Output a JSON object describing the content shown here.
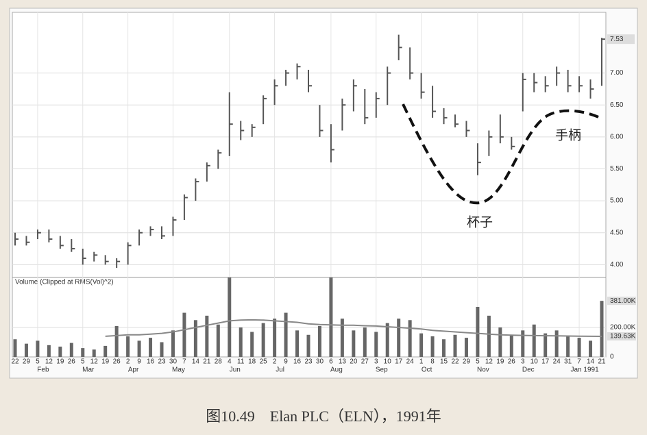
{
  "chart_data": [
    {
      "type": "ohlc",
      "categories": [
        "22",
        "29",
        "5",
        "12",
        "19",
        "26",
        "5",
        "12",
        "19",
        "26",
        "2",
        "9",
        "16",
        "23",
        "30",
        "7",
        "14",
        "21",
        "28",
        "4",
        "11",
        "18",
        "25",
        "2",
        "9",
        "16",
        "23",
        "30",
        "6",
        "13",
        "20",
        "27",
        "3",
        "10",
        "17",
        "24",
        "1",
        "8",
        "15",
        "22",
        "29",
        "5",
        "12",
        "19",
        "26",
        "3",
        "10",
        "17",
        "24",
        "31",
        "7",
        "14",
        "21"
      ],
      "month_labels": [
        null,
        null,
        "Feb",
        null,
        null,
        null,
        "Mar",
        null,
        null,
        null,
        "Apr",
        null,
        null,
        null,
        "May",
        null,
        null,
        null,
        null,
        "Jun",
        null,
        null,
        null,
        "Jul",
        null,
        null,
        null,
        null,
        "Aug",
        null,
        null,
        null,
        "Sep",
        null,
        null,
        null,
        "Oct",
        null,
        null,
        null,
        null,
        "Nov",
        null,
        null,
        null,
        "Dec",
        null,
        null,
        null,
        null,
        "Jan 1991",
        null,
        null
      ],
      "high": [
        4.5,
        4.45,
        4.55,
        4.55,
        4.45,
        4.4,
        4.25,
        4.2,
        4.15,
        4.1,
        4.35,
        4.55,
        4.6,
        4.6,
        4.75,
        5.1,
        5.35,
        5.6,
        5.8,
        6.7,
        6.25,
        6.2,
        6.65,
        6.9,
        7.05,
        7.15,
        7.05,
        6.5,
        6.2,
        6.6,
        6.9,
        6.75,
        6.7,
        7.1,
        7.6,
        7.4,
        7.0,
        6.8,
        6.45,
        6.35,
        6.25,
        5.9,
        6.1,
        6.35,
        6.0,
        7.0,
        7.0,
        6.95,
        7.1,
        7.05,
        6.95,
        6.9,
        7.55
      ],
      "low": [
        4.3,
        4.3,
        4.4,
        4.35,
        4.25,
        4.2,
        4.0,
        4.05,
        4.0,
        3.95,
        4.0,
        4.3,
        4.45,
        4.4,
        4.45,
        4.7,
        5.0,
        5.3,
        5.5,
        5.7,
        5.95,
        6.0,
        6.2,
        6.5,
        6.8,
        6.9,
        6.7,
        6.0,
        5.6,
        6.1,
        6.4,
        6.2,
        6.3,
        6.5,
        7.2,
        6.9,
        6.6,
        6.3,
        6.2,
        6.15,
        6.0,
        5.4,
        5.7,
        5.9,
        5.8,
        6.4,
        6.7,
        6.7,
        6.8,
        6.7,
        6.7,
        6.6,
        6.8
      ],
      "close": [
        4.4,
        4.35,
        4.5,
        4.4,
        4.3,
        4.25,
        4.1,
        4.15,
        4.05,
        4.05,
        4.3,
        4.5,
        4.55,
        4.45,
        4.7,
        5.05,
        5.3,
        5.55,
        5.75,
        6.2,
        6.1,
        6.15,
        6.6,
        6.8,
        7.0,
        7.1,
        6.8,
        6.1,
        5.8,
        6.5,
        6.8,
        6.3,
        6.6,
        7.0,
        7.4,
        7.0,
        6.7,
        6.4,
        6.3,
        6.2,
        6.1,
        5.6,
        6.0,
        6.0,
        5.85,
        6.9,
        6.85,
        6.8,
        7.0,
        6.8,
        6.8,
        6.75,
        7.53
      ],
      "price_tag": "7.53",
      "color": "#555555",
      "ylim": [
        3.8,
        7.95
      ],
      "yticks": [
        {
          "value": 4,
          "label": "4.00"
        },
        {
          "value": 4.5,
          "label": "4.50"
        },
        {
          "value": 5,
          "label": "5.00"
        },
        {
          "value": 5.5,
          "label": "5.50"
        },
        {
          "value": 6,
          "label": "6.00"
        },
        {
          "value": 6.5,
          "label": "6.50"
        },
        {
          "value": 7,
          "label": "7.00"
        }
      ],
      "grid": true,
      "annotations": [
        "杯子",
        "手柄"
      ]
    },
    {
      "type": "bar",
      "title": "Volume (Clipped at RMS(Vol)^2)",
      "values": [
        120000,
        90000,
        110000,
        80000,
        70000,
        95000,
        60000,
        50000,
        75000,
        210000,
        140000,
        110000,
        130000,
        100000,
        180000,
        300000,
        250000,
        280000,
        220000,
        540000,
        200000,
        170000,
        230000,
        260000,
        300000,
        180000,
        150000,
        210000,
        540000,
        260000,
        180000,
        200000,
        170000,
        230000,
        260000,
        250000,
        160000,
        140000,
        120000,
        150000,
        130000,
        340000,
        280000,
        200000,
        150000,
        180000,
        220000,
        160000,
        180000,
        140000,
        130000,
        110000,
        381000
      ],
      "volume_tag": "381.00K",
      "average": [
        null,
        null,
        null,
        null,
        null,
        null,
        null,
        null,
        140000,
        145000,
        150000,
        150000,
        155000,
        160000,
        170000,
        185000,
        200000,
        215000,
        230000,
        245000,
        250000,
        252000,
        250000,
        245000,
        240000,
        235000,
        225000,
        220000,
        218000,
        215000,
        215000,
        212000,
        210000,
        205000,
        200000,
        195000,
        190000,
        180000,
        175000,
        170000,
        165000,
        160000,
        155000,
        150000,
        148000,
        146000,
        145000,
        144000,
        143000,
        142000,
        141000,
        140000,
        139630
      ],
      "average_tag": "139.63K",
      "color": "#666666",
      "average_color": "#888888",
      "ylim": [
        0,
        540000
      ],
      "yticks": [
        0,
        {
          "value": 200000,
          "label": "200.00K"
        }
      ]
    }
  ],
  "caption": "图10.49　Elan PLC（ELN），1991年"
}
